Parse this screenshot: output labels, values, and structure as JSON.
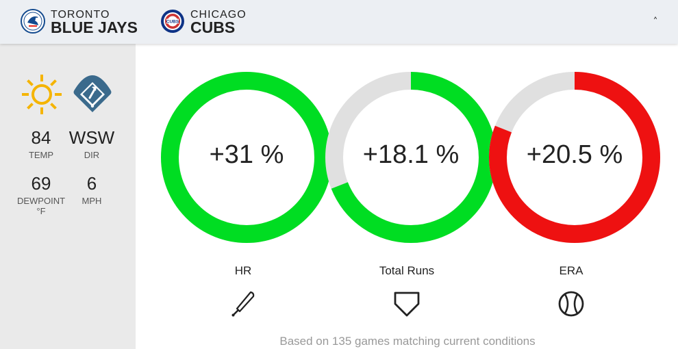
{
  "header": {
    "away": {
      "city": "TORONTO",
      "name": "BLUE JAYS",
      "logo_icon": "blue-jays-logo-icon",
      "color": "#134a8e"
    },
    "home": {
      "city": "CHICAGO",
      "name": "CUBS",
      "logo_icon": "cubs-logo-icon",
      "color": "#0e3386",
      "accent": "#cc3433"
    },
    "collapse_label": "˄"
  },
  "weather": {
    "temp": {
      "value": "84",
      "label": "TEMP",
      "icon": "sun-icon"
    },
    "dir": {
      "value": "WSW",
      "label": "DIR",
      "icon": "wind-direction-field-icon"
    },
    "dewpoint": {
      "value": "69",
      "label": "DEWPOINT",
      "unit": "°F"
    },
    "speed": {
      "value": "6",
      "label": "MPH"
    }
  },
  "metrics": [
    {
      "label": "HR",
      "display": "+31 %",
      "fill_fraction": 1.0,
      "color": "#00dd22",
      "icon": "baseball-bat-icon"
    },
    {
      "label": "Total Runs",
      "display": "+18.1 %",
      "fill_fraction": 0.69,
      "color": "#00dd22",
      "icon": "home-plate-icon"
    },
    {
      "label": "ERA",
      "display": "+20.5 %",
      "fill_fraction": 0.81,
      "color": "#ee1111",
      "icon": "baseball-icon"
    }
  ],
  "colors": {
    "track": "#e0e0e0",
    "positive": "#00dd22",
    "negative": "#ee1111"
  },
  "footnote": "Based on 135 games matching current conditions"
}
